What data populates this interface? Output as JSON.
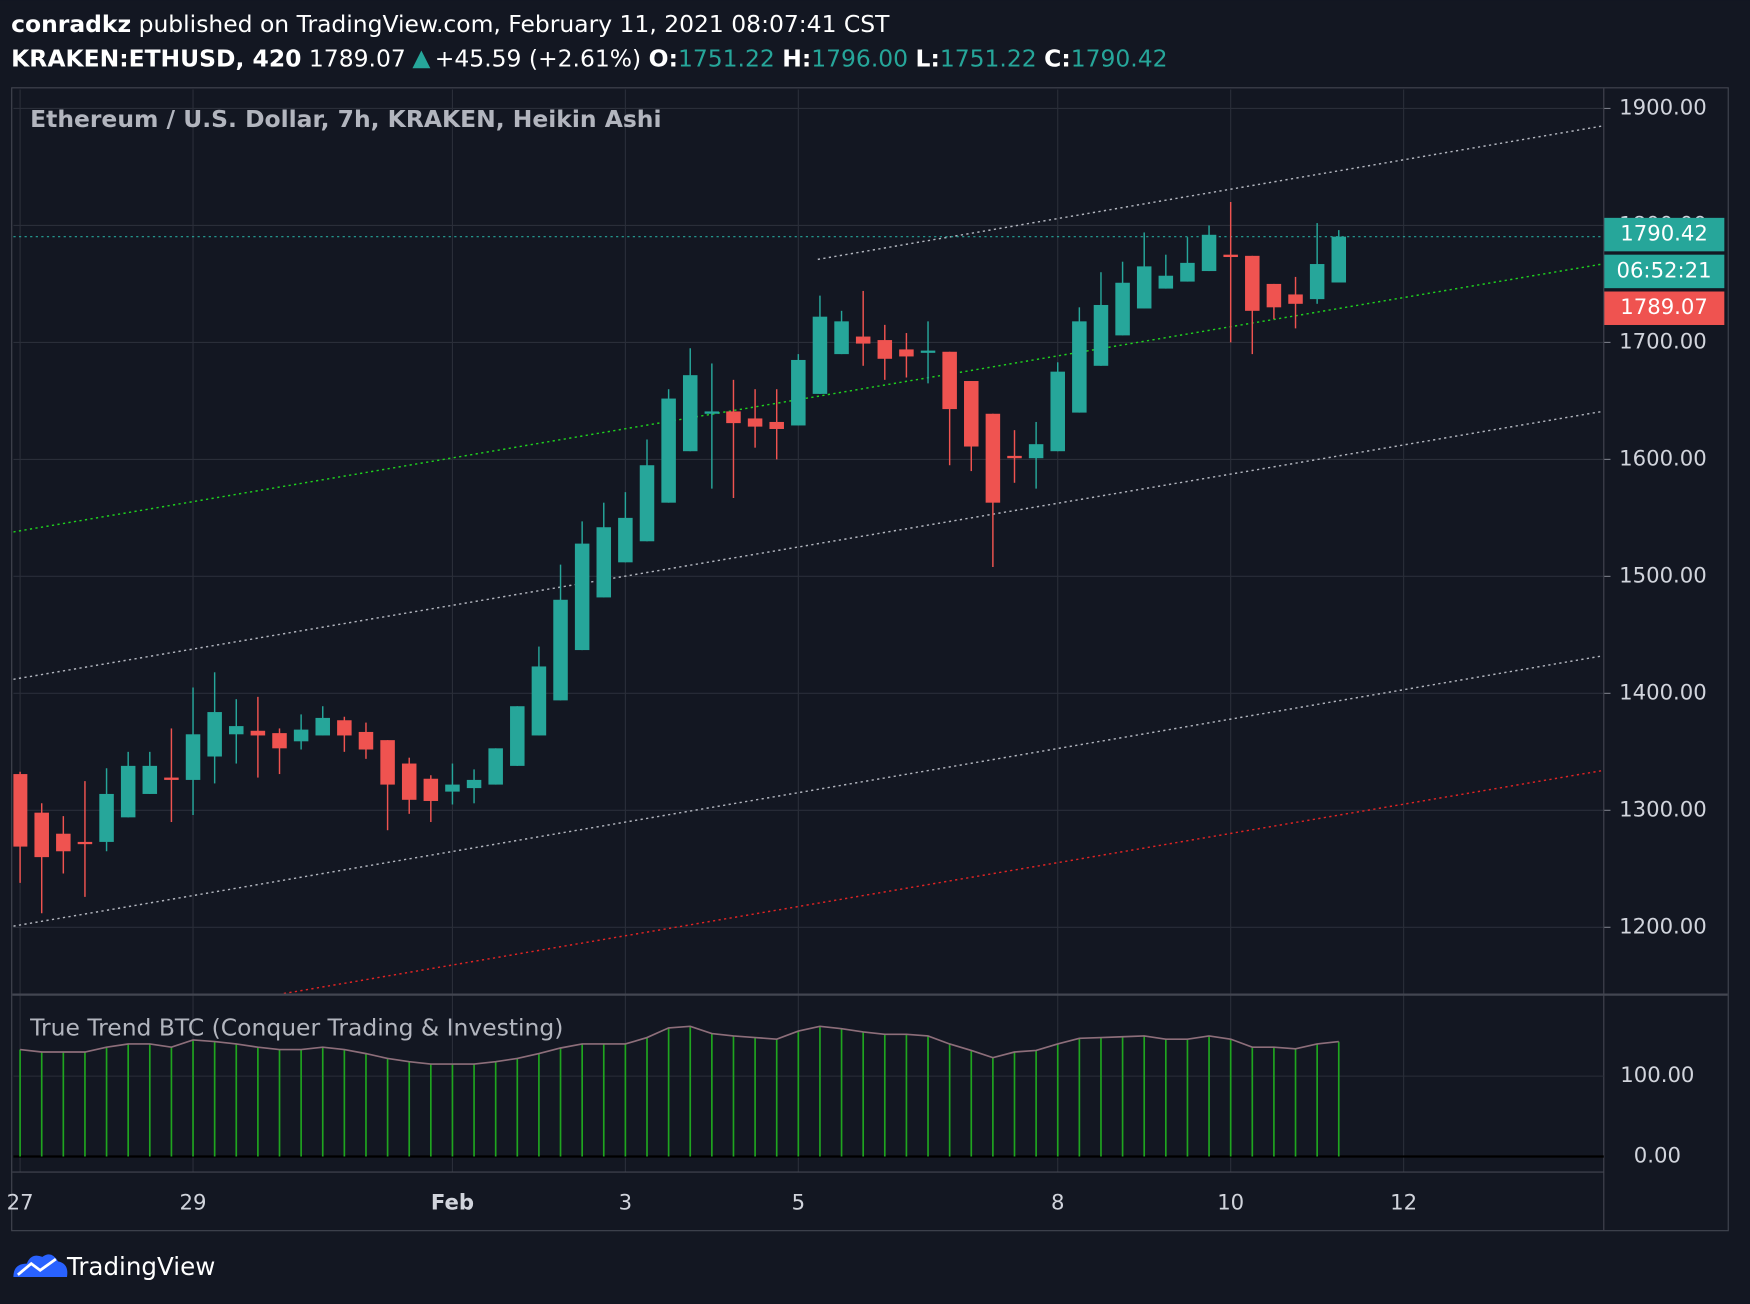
{
  "header": {
    "author": "conradkz",
    "published": "published on TradingView.com, February 11, 2021 08:07:41 CST",
    "symbol": "KRAKEN:ETHUSD, 420",
    "last": "1789.07",
    "change": "+45.59 (+2.61%)",
    "o_label": "O:",
    "open": "1751.22",
    "h_label": "H:",
    "high": "1796.00",
    "l_label": "L:",
    "low": "1751.22",
    "c_label": "C:",
    "close": "1790.42"
  },
  "chart_data": [
    {
      "type": "candlestick",
      "title": "Ethereum / U.S. Dollar, 7h, KRAKEN, Heikin Ashi",
      "open": [
        1331,
        1298,
        1280,
        1273,
        1273,
        1294,
        1314,
        1328,
        1326,
        1346,
        1365,
        1368,
        1366,
        1359,
        1364,
        1377,
        1367,
        1360,
        1340,
        1327,
        1316,
        1319,
        1322,
        1338,
        1364,
        1394,
        1437,
        1482,
        1512,
        1530,
        1563,
        1607,
        1639,
        1641,
        1635,
        1632,
        1629,
        1656,
        1690,
        1705,
        1702,
        1694,
        1692,
        1692,
        1667,
        1639,
        1603,
        1601,
        1607,
        1640,
        1680,
        1706,
        1729,
        1746,
        1752,
        1761,
        1775,
        1774,
        1750,
        1741,
        1737,
        1751.22
      ],
      "high": [
        1333,
        1306,
        1295,
        1325,
        1336,
        1350,
        1350,
        1370,
        1405,
        1418,
        1395,
        1397,
        1370,
        1382,
        1389,
        1380,
        1375,
        1360,
        1345,
        1330,
        1340,
        1335,
        1353,
        1389,
        1440,
        1510,
        1547,
        1563,
        1572,
        1617,
        1660,
        1695,
        1682,
        1668,
        1660,
        1660,
        1690,
        1740,
        1727,
        1744,
        1715,
        1708,
        1718,
        1692,
        1667,
        1639,
        1625,
        1632,
        1683,
        1730,
        1760,
        1769,
        1794,
        1775,
        1790,
        1800,
        1820,
        1774,
        1750,
        1756,
        1802,
        1796
      ],
      "low": [
        1238,
        1212,
        1246,
        1226,
        1265,
        1294,
        1314,
        1290,
        1296,
        1323,
        1340,
        1328,
        1331,
        1352,
        1364,
        1350,
        1344,
        1283,
        1297,
        1290,
        1305,
        1306,
        1322,
        1338,
        1364,
        1394,
        1437,
        1482,
        1512,
        1530,
        1563,
        1607,
        1575,
        1567,
        1610,
        1600,
        1629,
        1656,
        1690,
        1680,
        1668,
        1670,
        1665,
        1595,
        1590,
        1508,
        1580,
        1575,
        1607,
        1640,
        1680,
        1706,
        1729,
        1746,
        1752,
        1761,
        1700,
        1690,
        1720,
        1712,
        1733,
        1751.22
      ],
      "close": [
        1269,
        1260,
        1265,
        1272,
        1314,
        1338,
        1338,
        1326,
        1365,
        1384,
        1372,
        1364,
        1353,
        1369,
        1379,
        1364,
        1352,
        1322,
        1309,
        1308,
        1322,
        1326,
        1353,
        1389,
        1423,
        1480,
        1528,
        1542,
        1550,
        1595,
        1652,
        1672,
        1641,
        1631,
        1628,
        1626,
        1685,
        1722,
        1718,
        1699,
        1686,
        1688,
        1693,
        1643,
        1611,
        1563,
        1601,
        1613,
        1675,
        1718,
        1732,
        1751,
        1765,
        1757,
        1768,
        1792,
        1773,
        1727,
        1730,
        1733,
        1767,
        1790.42
      ],
      "up_color": "#26a69a",
      "down_color": "#ef5350",
      "xlim": [
        -0.31,
        73.26
      ],
      "xticks": [
        {
          "value": 0,
          "label": "27"
        },
        {
          "value": 8,
          "label": "29"
        },
        {
          "value": 20,
          "label": "Feb"
        },
        {
          "value": 28,
          "label": "3"
        },
        {
          "value": 36,
          "label": "5"
        },
        {
          "value": 48,
          "label": "8"
        },
        {
          "value": 56,
          "label": "10"
        },
        {
          "value": 64,
          "label": "12"
        }
      ],
      "ylim": [
        1143.4,
        1916.2
      ],
      "yticks": [
        {
          "value": 1200,
          "label": "1200.00"
        },
        {
          "value": 1300,
          "label": "1300.00"
        },
        {
          "value": 1400,
          "label": "1400.00"
        },
        {
          "value": 1500,
          "label": "1500.00"
        },
        {
          "value": 1600,
          "label": "1600.00"
        },
        {
          "value": 1700,
          "label": "1700.00"
        },
        {
          "value": 1800,
          "label": "1800.00"
        },
        {
          "value": 1900,
          "label": "1900.00"
        }
      ],
      "grid": true,
      "trend_lines": [
        {
          "start": [
            36.9,
            1771
          ],
          "end": [
            73.2,
            1885
          ],
          "color": "#b2b5be"
        },
        {
          "start": [
            -0.31,
            1538
          ],
          "end": [
            73.2,
            1767
          ],
          "color": "#1fd11f"
        },
        {
          "start": [
            -0.31,
            1412
          ],
          "end": [
            73.2,
            1641
          ],
          "color": "#b2b5be"
        },
        {
          "start": [
            -0.31,
            1201
          ],
          "end": [
            73.2,
            1432
          ],
          "color": "#b2b5be"
        },
        {
          "start": [
            12.2,
            1143.4
          ],
          "end": [
            73.2,
            1334
          ],
          "color": "#e02424"
        }
      ],
      "price_line": 1790.42,
      "price_line_color": "#26a69a",
      "price_labels": [
        {
          "label": "1790.42",
          "color": "#26a69a"
        },
        {
          "label": "06:52:21",
          "color": "#26a69a"
        },
        {
          "label": "1789.07",
          "color": "#ef5350"
        }
      ]
    },
    {
      "type": "histogram",
      "title": "True Trend BTC (Conquer Trading & Investing)",
      "values": [
        133,
        130,
        130,
        130,
        136,
        140,
        140,
        136,
        145,
        143,
        140,
        136,
        133,
        133,
        136,
        133,
        128,
        122,
        118,
        115,
        115,
        115,
        118,
        122,
        128,
        135,
        140,
        140,
        140,
        148,
        160,
        162,
        153,
        150,
        148,
        146,
        156,
        162,
        159,
        155,
        152,
        152,
        150,
        140,
        132,
        123,
        130,
        132,
        140,
        147,
        148,
        149,
        150,
        146,
        146,
        150,
        146,
        136,
        136,
        134,
        140,
        143
      ],
      "color": "#1fa51f",
      "line_color": "#8d6e7a",
      "xlim": [
        -0.31,
        73.26
      ],
      "ylim": [
        -19.4,
        200
      ],
      "yticks": [
        {
          "value": 0,
          "label": "0.00"
        },
        {
          "value": 100,
          "label": "100.00"
        }
      ]
    }
  ],
  "footer": {
    "brand": "TradingView"
  }
}
